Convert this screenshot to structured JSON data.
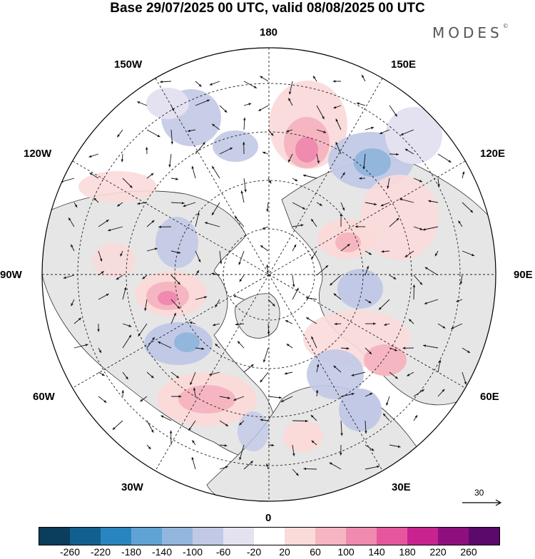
{
  "title": "Base 29/07/2025 00 UTC, valid 08/08/2025 00 UTC",
  "brand": "MODES",
  "brand_mark": "©",
  "longitude_labels": [
    "180",
    "150E",
    "120E",
    "90E",
    "60E",
    "30E",
    "0",
    "30W",
    "60W",
    "90W",
    "120W",
    "150W"
  ],
  "vector_scale": {
    "value": "30"
  },
  "colorbar": {
    "colors": [
      "#0b3d5c",
      "#12608f",
      "#2a84bf",
      "#5fa3d4",
      "#93b6dd",
      "#c2c9e6",
      "#e4e2f0",
      "#ffffff",
      "#fbdada",
      "#f5b6c1",
      "#f08aae",
      "#e5569e",
      "#c8238e",
      "#8f0f7f",
      "#5a0a6b"
    ],
    "ticks": [
      "-260",
      "-220",
      "-180",
      "-140",
      "-100",
      "-60",
      "-20",
      "20",
      "60",
      "100",
      "140",
      "180",
      "220",
      "260"
    ]
  }
}
